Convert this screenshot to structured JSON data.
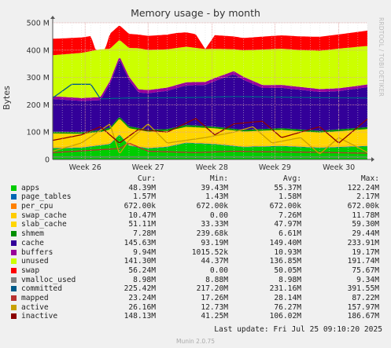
{
  "title": "Memory usage - by month",
  "rrdtool_label": "RRDTOOL / TOBI OETIKER",
  "last_update": "Last update:  Fri Jul 25 09:10:20 2025",
  "generator": "Munin 2.0.75",
  "colors": {
    "background": "#f0f0f0",
    "plot_background": "#ffffff",
    "grid": "#e0a0a0",
    "axis": "#555555"
  },
  "legend": {
    "headers": [
      "Cur:",
      "Min:",
      "Avg:",
      "Max:"
    ],
    "rows": [
      {
        "name": "apps",
        "color": "#00cc00",
        "cur": "48.39M",
        "min": "39.43M",
        "avg": "55.37M",
        "max": "122.24M"
      },
      {
        "name": "page_tables",
        "color": "#0066b3",
        "cur": "1.57M",
        "min": "1.43M",
        "avg": "1.58M",
        "max": "2.17M"
      },
      {
        "name": "per_cpu",
        "color": "#ff8000",
        "cur": "672.00k",
        "min": "672.00k",
        "avg": "672.00k",
        "max": "672.00k"
      },
      {
        "name": "swap_cache",
        "color": "#ffcc00",
        "cur": "10.47M",
        "min": "0.00",
        "avg": "7.26M",
        "max": "11.78M"
      },
      {
        "name": "slab_cache",
        "color": "#ffd600",
        "cur": "51.11M",
        "min": "33.33M",
        "avg": "47.97M",
        "max": "59.30M"
      },
      {
        "name": "shmem",
        "color": "#008f00",
        "cur": "7.28M",
        "min": "239.68k",
        "avg": "6.61M",
        "max": "29.44M"
      },
      {
        "name": "cache",
        "color": "#330099",
        "cur": "145.63M",
        "min": "93.19M",
        "avg": "149.40M",
        "max": "233.91M"
      },
      {
        "name": "buffers",
        "color": "#990099",
        "cur": "9.94M",
        "min": "1015.52k",
        "avg": "10.93M",
        "max": "19.17M"
      },
      {
        "name": "unused",
        "color": "#ccff00",
        "cur": "141.30M",
        "min": "44.37M",
        "avg": "136.85M",
        "max": "191.74M"
      },
      {
        "name": "swap",
        "color": "#ff0000",
        "cur": "56.24M",
        "min": "0.00",
        "avg": "50.05M",
        "max": "75.67M"
      },
      {
        "name": "vmalloc_used",
        "color": "#808080",
        "cur": "8.98M",
        "min": "8.88M",
        "avg": "8.98M",
        "max": "9.34M"
      },
      {
        "name": "committed",
        "color": "#005a89",
        "cur": "225.42M",
        "min": "217.20M",
        "avg": "231.16M",
        "max": "391.55M"
      },
      {
        "name": "mapped",
        "color": "#b8312f",
        "cur": "23.24M",
        "min": "17.26M",
        "avg": "28.14M",
        "max": "87.22M"
      },
      {
        "name": "active",
        "color": "#c8a000",
        "cur": "26.16M",
        "min": "12.73M",
        "avg": "76.27M",
        "max": "157.97M"
      },
      {
        "name": "inactive",
        "color": "#8b0000",
        "cur": "148.13M",
        "min": "41.25M",
        "avg": "106.02M",
        "max": "186.67M"
      }
    ]
  },
  "chart_data": {
    "type": "area",
    "title": "Memory usage - by month",
    "ylabel": "Bytes",
    "xlabel": "",
    "ylim": [
      0,
      500
    ],
    "y_unit": "M",
    "y_ticks": [
      0,
      100,
      200,
      300,
      400,
      500
    ],
    "y_tick_labels": [
      "0",
      "100 M",
      "200 M",
      "300 M",
      "400 M",
      "500 M"
    ],
    "x_tick_labels": [
      "Week 26",
      "Week 27",
      "Week 28",
      "Week 29",
      "Week 30"
    ],
    "x_range_days": [
      0,
      33
    ],
    "week_label_days": [
      3.4,
      10.0,
      16.7,
      23.3,
      30.0
    ],
    "grid": true,
    "stacked_series": [
      {
        "name": "apps",
        "color": "#00cc00",
        "points": [
          [
            0,
            40
          ],
          [
            3,
            42
          ],
          [
            6,
            55
          ],
          [
            7,
            90
          ],
          [
            8,
            50
          ],
          [
            10,
            40
          ],
          [
            12,
            45
          ],
          [
            14,
            60
          ],
          [
            17,
            55
          ],
          [
            20,
            45
          ],
          [
            24,
            48
          ],
          [
            28,
            42
          ],
          [
            33,
            48
          ]
        ]
      },
      {
        "name": "page_tables",
        "color": "#0066b3",
        "points": [
          [
            0,
            1.6
          ],
          [
            33,
            1.6
          ]
        ]
      },
      {
        "name": "per_cpu",
        "color": "#ff8000",
        "points": [
          [
            0,
            0.7
          ],
          [
            33,
            0.7
          ]
        ]
      },
      {
        "name": "swap_cache",
        "color": "#ffcc00",
        "points": [
          [
            0,
            8
          ],
          [
            10,
            7
          ],
          [
            20,
            7
          ],
          [
            33,
            10
          ]
        ]
      },
      {
        "name": "slab_cache",
        "color": "#ffd600",
        "points": [
          [
            0,
            45
          ],
          [
            5,
            40
          ],
          [
            8,
            55
          ],
          [
            12,
            50
          ],
          [
            16,
            50
          ],
          [
            20,
            48
          ],
          [
            24,
            50
          ],
          [
            28,
            45
          ],
          [
            33,
            51
          ]
        ]
      },
      {
        "name": "shmem",
        "color": "#008f00",
        "points": [
          [
            0,
            6
          ],
          [
            10,
            7
          ],
          [
            20,
            6
          ],
          [
            33,
            7
          ]
        ]
      },
      {
        "name": "cache",
        "color": "#330099",
        "points": [
          [
            0,
            120
          ],
          [
            5,
            110
          ],
          [
            7,
            210
          ],
          [
            9,
            130
          ],
          [
            12,
            140
          ],
          [
            16,
            150
          ],
          [
            19,
            200
          ],
          [
            22,
            150
          ],
          [
            26,
            145
          ],
          [
            30,
            140
          ],
          [
            33,
            146
          ]
        ]
      },
      {
        "name": "buffers",
        "color": "#990099",
        "points": [
          [
            0,
            10
          ],
          [
            10,
            12
          ],
          [
            20,
            11
          ],
          [
            33,
            10
          ]
        ]
      },
      {
        "name": "unused",
        "color": "#ccff00",
        "points": [
          [
            0,
            150
          ],
          [
            5,
            175
          ],
          [
            7,
            60
          ],
          [
            9,
            150
          ],
          [
            12,
            140
          ],
          [
            16,
            120
          ],
          [
            19,
            80
          ],
          [
            22,
            130
          ],
          [
            26,
            135
          ],
          [
            30,
            145
          ],
          [
            33,
            141
          ]
        ]
      },
      {
        "name": "swap",
        "color": "#ff0000",
        "points": [
          [
            0,
            60
          ],
          [
            4,
            55
          ],
          [
            4.5,
            0
          ],
          [
            5.5,
            0
          ],
          [
            6,
            55
          ],
          [
            9,
            50
          ],
          [
            13,
            55
          ],
          [
            15,
            50
          ],
          [
            16,
            0
          ],
          [
            17,
            50
          ],
          [
            20,
            45
          ],
          [
            23,
            48
          ],
          [
            26,
            50
          ],
          [
            30,
            52
          ],
          [
            33,
            56
          ]
        ]
      }
    ],
    "line_series": [
      {
        "name": "vmalloc_used",
        "color": "#808080",
        "points": [
          [
            0,
            9
          ],
          [
            33,
            9
          ]
        ]
      },
      {
        "name": "committed",
        "color": "#005a89",
        "points": [
          [
            0,
            225
          ],
          [
            2,
            275
          ],
          [
            4,
            275
          ],
          [
            5,
            222
          ],
          [
            8,
            225
          ],
          [
            14,
            226
          ],
          [
            19,
            230
          ],
          [
            24,
            228
          ],
          [
            28,
            226
          ],
          [
            33,
            225
          ]
        ]
      },
      {
        "name": "mapped",
        "color": "#b8312f",
        "points": [
          [
            0,
            25
          ],
          [
            7,
            40
          ],
          [
            8,
            60
          ],
          [
            10,
            30
          ],
          [
            15,
            25
          ],
          [
            19,
            30
          ],
          [
            22,
            28
          ],
          [
            28,
            26
          ],
          [
            33,
            23
          ]
        ]
      },
      {
        "name": "active",
        "color": "#c8a000",
        "points": [
          [
            0,
            30
          ],
          [
            3,
            60
          ],
          [
            6,
            130
          ],
          [
            7,
            20
          ],
          [
            8,
            70
          ],
          [
            10,
            130
          ],
          [
            12,
            60
          ],
          [
            16,
            80
          ],
          [
            19,
            100
          ],
          [
            21,
            120
          ],
          [
            23,
            60
          ],
          [
            26,
            80
          ],
          [
            28,
            20
          ],
          [
            30,
            80
          ],
          [
            33,
            26
          ]
        ]
      },
      {
        "name": "inactive",
        "color": "#8b0000",
        "points": [
          [
            0,
            70
          ],
          [
            3,
            90
          ],
          [
            5,
            120
          ],
          [
            7,
            60
          ],
          [
            9,
            110
          ],
          [
            12,
            100
          ],
          [
            15,
            150
          ],
          [
            17,
            90
          ],
          [
            19,
            130
          ],
          [
            22,
            140
          ],
          [
            24,
            80
          ],
          [
            26,
            100
          ],
          [
            28,
            120
          ],
          [
            30,
            60
          ],
          [
            33,
            148
          ]
        ]
      }
    ]
  }
}
